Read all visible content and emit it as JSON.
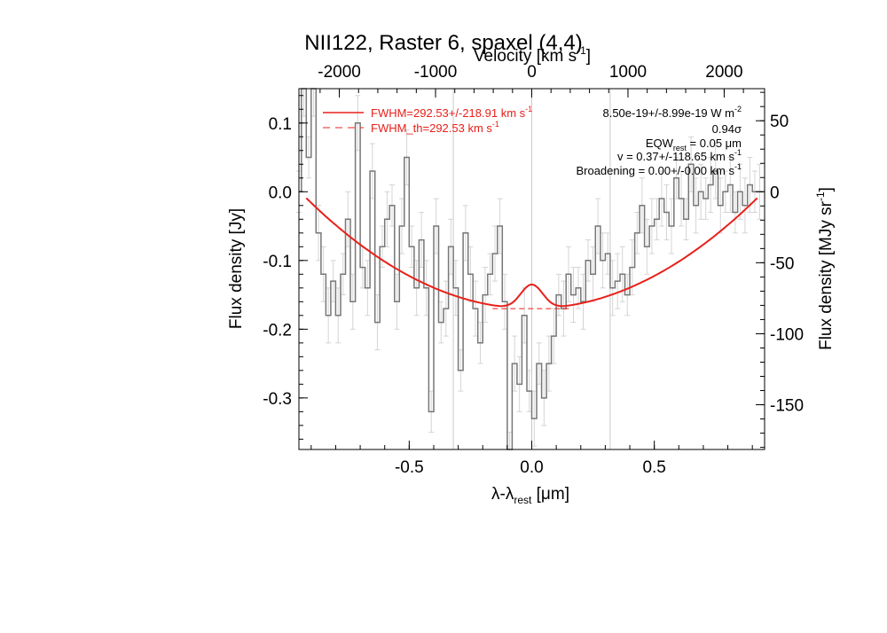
{
  "chart_data": {
    "type": "line",
    "title": "NII122, Raster 6, spaxel (4,4)",
    "xlabel": "λ-λ",
    "xlabel_sub": "rest",
    "xlabel_unit": " [μm]",
    "ylabel": "Flux density [Jy]",
    "ylabel_right": "Flux density [MJy sr",
    "ylabel_right_sup": "-1",
    "ylabel_right_end": "]",
    "xlabel_top": "Velocity [km s",
    "xlabel_top_sup": "-1",
    "xlabel_top_end": "]",
    "xlim": [
      -0.95,
      0.95
    ],
    "ylim": [
      -0.375,
      0.15
    ],
    "xlim_top": [
      -2420,
      2420
    ],
    "ylim_right": [
      -181.5,
      72.6
    ],
    "x_ticks": [
      -0.5,
      0.0,
      0.5
    ],
    "x_tick_labels": [
      "-0.5",
      "0.0",
      "0.5"
    ],
    "y_ticks": [
      0.1,
      0.0,
      -0.1,
      -0.2,
      -0.3
    ],
    "y_tick_labels": [
      "0.1",
      "0.0",
      "-0.1",
      "-0.2",
      "-0.3"
    ],
    "x_top_ticks": [
      -2000,
      -1000,
      0,
      1000,
      2000
    ],
    "x_top_tick_labels": [
      "-2000",
      "-1000",
      "0",
      "1000",
      "2000"
    ],
    "y_right_ticks": [
      50,
      0,
      -50,
      -100,
      -150
    ],
    "y_right_tick_labels": [
      "50",
      "0",
      "-50",
      "-100",
      "-150"
    ],
    "vlines": [
      -0.32,
      0.0,
      0.32
    ],
    "series": [
      {
        "name": "spectrum",
        "style": "step",
        "color": "#777777",
        "x": [
          -0.95,
          -0.93,
          -0.91,
          -0.89,
          -0.87,
          -0.85,
          -0.83,
          -0.81,
          -0.79,
          -0.77,
          -0.75,
          -0.73,
          -0.71,
          -0.69,
          -0.67,
          -0.65,
          -0.63,
          -0.61,
          -0.59,
          -0.57,
          -0.55,
          -0.53,
          -0.51,
          -0.49,
          -0.47,
          -0.45,
          -0.43,
          -0.41,
          -0.39,
          -0.37,
          -0.35,
          -0.33,
          -0.31,
          -0.29,
          -0.27,
          -0.25,
          -0.23,
          -0.21,
          -0.19,
          -0.17,
          -0.15,
          -0.13,
          -0.11,
          -0.09,
          -0.07,
          -0.05,
          -0.03,
          -0.01,
          0.01,
          0.03,
          0.05,
          0.07,
          0.09,
          0.11,
          0.13,
          0.15,
          0.17,
          0.19,
          0.21,
          0.23,
          0.25,
          0.27,
          0.29,
          0.31,
          0.33,
          0.35,
          0.37,
          0.39,
          0.41,
          0.43,
          0.45,
          0.47,
          0.49,
          0.51,
          0.53,
          0.55,
          0.57,
          0.59,
          0.61,
          0.63,
          0.65,
          0.67,
          0.69,
          0.71,
          0.73,
          0.75,
          0.77,
          0.79,
          0.81,
          0.83,
          0.85,
          0.87,
          0.89,
          0.91,
          0.93
        ],
        "values": [
          0.0,
          0.15,
          0.05,
          0.15,
          -0.06,
          -0.12,
          -0.18,
          -0.13,
          -0.18,
          -0.12,
          -0.04,
          -0.16,
          0.1,
          -0.11,
          -0.14,
          0.03,
          -0.19,
          -0.08,
          -0.04,
          -0.02,
          -0.16,
          -0.05,
          0.05,
          -0.08,
          -0.14,
          -0.07,
          -0.14,
          -0.32,
          -0.05,
          -0.19,
          -0.17,
          -0.08,
          -0.14,
          -0.26,
          -0.06,
          -0.12,
          -0.17,
          -0.22,
          -0.15,
          -0.12,
          -0.09,
          -0.05,
          -0.16,
          -0.38,
          -0.25,
          -0.28,
          -0.18,
          -0.29,
          -0.33,
          -0.25,
          -0.3,
          -0.25,
          -0.21,
          -0.15,
          -0.17,
          -0.12,
          -0.15,
          -0.14,
          -0.16,
          -0.1,
          -0.12,
          -0.05,
          -0.1,
          -0.09,
          -0.14,
          -0.13,
          -0.12,
          -0.15,
          -0.11,
          -0.06,
          -0.02,
          -0.08,
          -0.05,
          -0.04,
          -0.01,
          -0.03,
          -0.05,
          0.02,
          -0.01,
          -0.04,
          0.04,
          -0.02,
          0.0,
          -0.01,
          0.01,
          0.03,
          -0.02,
          0.0,
          0.01,
          -0.03,
          0.0,
          -0.02,
          0.01,
          0.0,
          0.0
        ],
        "errors": [
          0.03,
          0.04,
          0.03,
          0.04,
          0.04,
          0.04,
          0.04,
          0.03,
          0.04,
          0.03,
          0.04,
          0.04,
          0.04,
          0.03,
          0.04,
          0.04,
          0.04,
          0.03,
          0.04,
          0.03,
          0.04,
          0.04,
          0.04,
          0.03,
          0.04,
          0.04,
          0.04,
          0.03,
          0.04,
          0.03,
          0.04,
          0.04,
          0.04,
          0.03,
          0.04,
          0.04,
          0.04,
          0.03,
          0.04,
          0.03,
          0.04,
          0.04,
          0.04,
          0.03,
          0.04,
          0.04,
          0.04,
          0.03,
          0.04,
          0.03,
          0.04,
          0.04,
          0.04,
          0.03,
          0.04,
          0.04,
          0.04,
          0.03,
          0.04,
          0.03,
          0.04,
          0.04,
          0.04,
          0.03,
          0.04,
          0.04,
          0.04,
          0.03,
          0.04,
          0.03,
          0.04,
          0.04,
          0.04,
          0.03,
          0.04,
          0.04,
          0.04,
          0.03,
          0.04,
          0.03,
          0.04,
          0.04,
          0.04,
          0.03,
          0.04,
          0.04,
          0.04,
          0.03,
          0.04,
          0.03,
          0.04,
          0.04,
          0.04,
          0.03,
          0.04
        ]
      },
      {
        "name": "FWHM fit",
        "style": "line",
        "color": "#e8201a",
        "model": {
          "baseline_min": -0.17,
          "baseline_curv": 0.19,
          "baseline_center": 0.0,
          "line_amp": 0.035,
          "line_center": 0.0,
          "line_sigma": 0.045
        }
      },
      {
        "name": "FWHM_th",
        "style": "dashed",
        "color": "#e8201a",
        "x": [
          -0.16,
          0.16
        ],
        "values": [
          -0.17,
          -0.17
        ]
      }
    ],
    "legend": [
      {
        "label": "FWHM=292.53+/-218.91 km s",
        "sup": "-1",
        "style": "solid"
      },
      {
        "label": "FWHM_th=292.53 km s",
        "sup": "-1",
        "style": "dashed"
      }
    ],
    "annotations": [
      {
        "text": "8.50e-19+/-8.99e-19 W m",
        "sup": "-2"
      },
      {
        "text": "0.94σ"
      },
      {
        "text": "EQW",
        "sub": "rest",
        "tail": " = 0.05 μm"
      },
      {
        "text": "v = 0.37+/-118.65 km s",
        "sup": "-1"
      },
      {
        "text": "Broadening = 0.00+/-0.00 km s",
        "sup": "-1"
      }
    ]
  }
}
